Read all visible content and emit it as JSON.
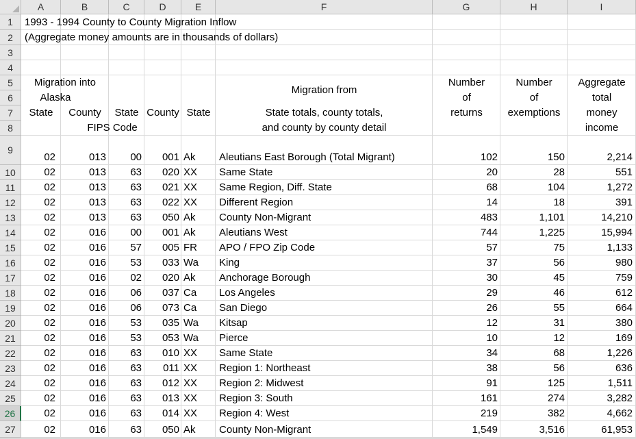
{
  "columns": [
    "A",
    "B",
    "C",
    "D",
    "E",
    "F",
    "G",
    "H",
    "I"
  ],
  "title_line1": "1993 - 1994 County to County Migration Inflow",
  "title_line2": "(Aggregate money amounts are in thousands of dollars)",
  "header": {
    "migration_into_1": "Migration into",
    "migration_into_2": "Alaska",
    "state": "State",
    "county": "County",
    "state2": "State",
    "county2": "County",
    "state3": "State",
    "fips_code": "FIPS Code",
    "migration_from": "Migration from",
    "detail_1": "State totals, county totals,",
    "detail_2": "and county by county detail",
    "returns_1": "Number",
    "returns_2": "of",
    "returns_3": "returns",
    "exemptions_1": "Number",
    "exemptions_2": "of",
    "exemptions_3": "exemptions",
    "income_1": "Aggregate",
    "income_2": "total",
    "income_3": "money",
    "income_4": "income"
  },
  "row_numbers": [
    "1",
    "2",
    "3",
    "4",
    "5",
    "6",
    "7",
    "8",
    "9",
    "10",
    "11",
    "12",
    "13",
    "14",
    "15",
    "16",
    "17",
    "18",
    "19",
    "20",
    "21",
    "22",
    "23",
    "24",
    "25",
    "26",
    "27"
  ],
  "selected_row": "26",
  "data_rows": [
    {
      "a": "02",
      "b": "013",
      "c": "00",
      "d": "001",
      "e": "Ak",
      "f": "Aleutians East Borough (Total Migrant)",
      "g": "102",
      "h": "150",
      "i": "2,214"
    },
    {
      "a": "02",
      "b": "013",
      "c": "63",
      "d": "020",
      "e": "XX",
      "f": "Same State",
      "g": "20",
      "h": "28",
      "i": "551"
    },
    {
      "a": "02",
      "b": "013",
      "c": "63",
      "d": "021",
      "e": "XX",
      "f": "Same Region, Diff. State",
      "g": "68",
      "h": "104",
      "i": "1,272"
    },
    {
      "a": "02",
      "b": "013",
      "c": "63",
      "d": "022",
      "e": "XX",
      "f": "Different Region",
      "g": "14",
      "h": "18",
      "i": "391"
    },
    {
      "a": "02",
      "b": "013",
      "c": "63",
      "d": "050",
      "e": "Ak",
      "f": "County Non-Migrant",
      "g": "483",
      "h": "1,101",
      "i": "14,210"
    },
    {
      "a": "02",
      "b": "016",
      "c": "00",
      "d": "001",
      "e": "Ak",
      "f": "Aleutians West",
      "g": "744",
      "h": "1,225",
      "i": "15,994"
    },
    {
      "a": "02",
      "b": "016",
      "c": "57",
      "d": "005",
      "e": "FR",
      "f": "APO / FPO Zip Code",
      "g": "57",
      "h": "75",
      "i": "1,133"
    },
    {
      "a": "02",
      "b": "016",
      "c": "53",
      "d": "033",
      "e": "Wa",
      "f": "King",
      "g": "37",
      "h": "56",
      "i": "980"
    },
    {
      "a": "02",
      "b": "016",
      "c": "02",
      "d": "020",
      "e": "Ak",
      "f": "Anchorage Borough",
      "g": "30",
      "h": "45",
      "i": "759"
    },
    {
      "a": "02",
      "b": "016",
      "c": "06",
      "d": "037",
      "e": "Ca",
      "f": "Los Angeles",
      "g": "29",
      "h": "46",
      "i": "612"
    },
    {
      "a": "02",
      "b": "016",
      "c": "06",
      "d": "073",
      "e": "Ca",
      "f": "San Diego",
      "g": "26",
      "h": "55",
      "i": "664"
    },
    {
      "a": "02",
      "b": "016",
      "c": "53",
      "d": "035",
      "e": "Wa",
      "f": "Kitsap",
      "g": "12",
      "h": "31",
      "i": "380"
    },
    {
      "a": "02",
      "b": "016",
      "c": "53",
      "d": "053",
      "e": "Wa",
      "f": "Pierce",
      "g": "10",
      "h": "12",
      "i": "169"
    },
    {
      "a": "02",
      "b": "016",
      "c": "63",
      "d": "010",
      "e": "XX",
      "f": "Same State",
      "g": "34",
      "h": "68",
      "i": "1,226"
    },
    {
      "a": "02",
      "b": "016",
      "c": "63",
      "d": "011",
      "e": "XX",
      "f": "Region 1: Northeast",
      "g": "38",
      "h": "56",
      "i": "636"
    },
    {
      "a": "02",
      "b": "016",
      "c": "63",
      "d": "012",
      "e": "XX",
      "f": "Region 2: Midwest",
      "g": "91",
      "h": "125",
      "i": "1,511"
    },
    {
      "a": "02",
      "b": "016",
      "c": "63",
      "d": "013",
      "e": "XX",
      "f": "Region 3: South",
      "g": "161",
      "h": "274",
      "i": "3,282"
    },
    {
      "a": "02",
      "b": "016",
      "c": "63",
      "d": "014",
      "e": "XX",
      "f": "Region 4: West",
      "g": "219",
      "h": "382",
      "i": "4,662"
    },
    {
      "a": "02",
      "b": "016",
      "c": "63",
      "d": "050",
      "e": "Ak",
      "f": "County Non-Migrant",
      "g": "1,549",
      "h": "3,516",
      "i": "61,953"
    }
  ]
}
